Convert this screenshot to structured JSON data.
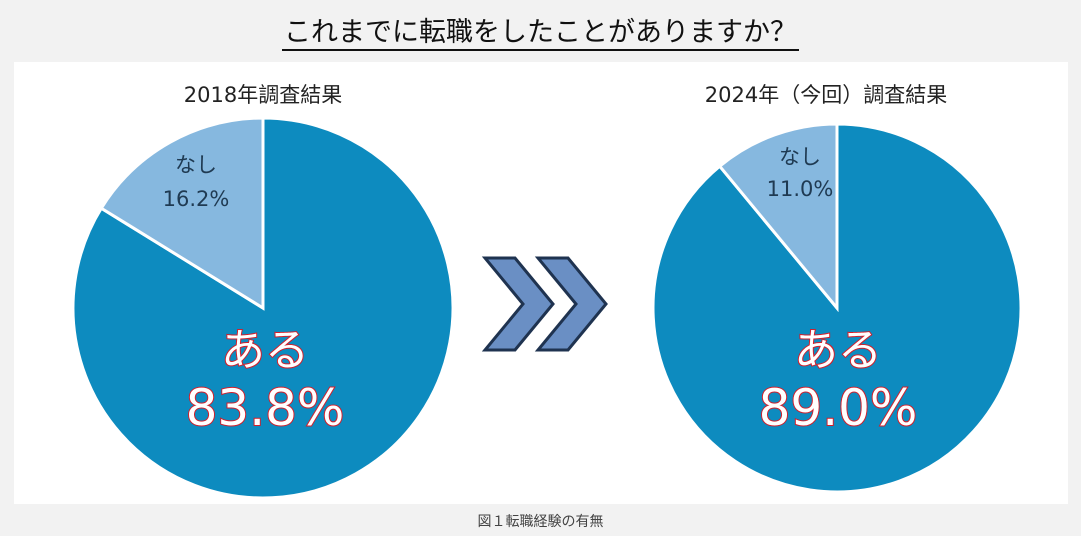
{
  "title": "これまでに転職をしたことがありますか？",
  "caption": "図１転職経験の有無",
  "colors": {
    "yes": "#0d8bbf",
    "no": "#86b8df",
    "arrow": "#6a8fc4",
    "arrow_edge": "#1f3350",
    "label_outline": "#d21f2b"
  },
  "chart_data": [
    {
      "type": "pie",
      "title": "2018年調査結果",
      "slices": [
        {
          "label": "ある",
          "value": 83.8,
          "value_label": "83.8%"
        },
        {
          "label": "なし",
          "value": 16.2,
          "value_label": "16.2%"
        }
      ]
    },
    {
      "type": "pie",
      "title": "2024年（今回）調査結果",
      "slices": [
        {
          "label": "ある",
          "value": 89.0,
          "value_label": "89.0%"
        },
        {
          "label": "なし",
          "value": 11.0,
          "value_label": "11.0%"
        }
      ]
    }
  ]
}
